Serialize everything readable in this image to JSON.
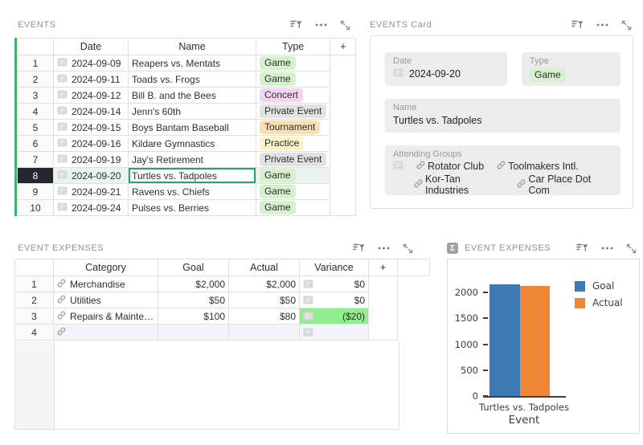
{
  "colors": {
    "accent_green": "#45b06f",
    "selected_cell_border": "#2fa163",
    "selected_row_bg": "#e9f4ec",
    "selected_rownum_bg": "#23272f",
    "variance_negative_bg": "#90ee90",
    "new_row_bg": "#f4f4fc",
    "card_field_bg": "#ececec",
    "type_colors": {
      "Game": "#d6f1cd",
      "Concert": "#f2d3f1",
      "Private Event": "#e2e2e2",
      "Tournament": "#fbdfb4",
      "Practice": "#faf3c6"
    }
  },
  "icons": {
    "filter_sort": "filter-sort-icon",
    "more": "ellipsis-icon",
    "expand_panel": "expand-icon",
    "expand_record": "expand-record-icon",
    "link": "link-icon",
    "sigma": "sigma-icon"
  },
  "events": {
    "title": "EVENTS",
    "table": {
      "headers": {
        "date": "Date",
        "name": "Name",
        "type": "Type",
        "add": "+"
      },
      "selected_column": "Name",
      "selected_row": "8",
      "rows": [
        {
          "num": "1",
          "date": "2024-09-09",
          "name": "Reapers vs. Mentats",
          "type": "Game"
        },
        {
          "num": "2",
          "date": "2024-09-11",
          "name": "Toads vs. Frogs",
          "type": "Game"
        },
        {
          "num": "3",
          "date": "2024-09-12",
          "name": "Bill B. and the Bees",
          "type": "Concert"
        },
        {
          "num": "4",
          "date": "2024-09-14",
          "name": "Jenn's 60th",
          "type": "Private Event"
        },
        {
          "num": "5",
          "date": "2024-09-15",
          "name": "Boys Bantam Baseball",
          "type": "Tournament"
        },
        {
          "num": "6",
          "date": "2024-09-16",
          "name": "Kildare Gymnastics",
          "type": "Practice"
        },
        {
          "num": "7",
          "date": "2024-09-19",
          "name": "Jay's Retirement",
          "type": "Private Event"
        },
        {
          "num": "8",
          "date": "2024-09-20",
          "name": "Turtles vs. Tadpoles",
          "type": "Game",
          "selected": true
        },
        {
          "num": "9",
          "date": "2024-09-21",
          "name": "Ravens vs. Chiefs",
          "type": "Game"
        },
        {
          "num": "10",
          "date": "2024-09-24",
          "name": "Pulses vs. Berries",
          "type": "Game"
        }
      ]
    }
  },
  "events_card": {
    "title": "EVENTS Card",
    "fields": {
      "date": {
        "label": "Date",
        "value": "2024-09-20"
      },
      "type": {
        "label": "Type",
        "value": "Game"
      },
      "name": {
        "label": "Name",
        "value": "Turtles vs. Tadpoles"
      },
      "attending_groups": {
        "label": "Attending Groups",
        "links": [
          "Rotator Club",
          "Toolmakers Intl.",
          "Kor-Tan Industries",
          "Car Place Dot Com"
        ]
      }
    }
  },
  "event_expenses": {
    "title": "EVENT EXPENSES",
    "table": {
      "headers": {
        "category": "Category",
        "goal": "Goal",
        "actual": "Actual",
        "variance": "Variance",
        "add": "+"
      },
      "selected_column": "Category",
      "rows": [
        {
          "num": "1",
          "category": "Merchandise",
          "goal": "$2,000",
          "actual": "$2,000",
          "variance": "$0"
        },
        {
          "num": "2",
          "category": "Utilities",
          "goal": "$50",
          "actual": "$50",
          "variance": "$0"
        },
        {
          "num": "3",
          "category": "Repairs & Mainte…",
          "goal": "$100",
          "actual": "$80",
          "variance": "($20)",
          "variance_highlight": true
        },
        {
          "num": "4",
          "category": "",
          "goal": "",
          "actual": "",
          "variance": "",
          "new_row": true
        }
      ]
    }
  },
  "chart_panel": {
    "title": "EVENT EXPENSES"
  },
  "chart_data": {
    "type": "bar",
    "title": "",
    "categories": [
      "Turtles vs. Tadpoles"
    ],
    "series": [
      {
        "name": "Goal",
        "values": [
          2150
        ],
        "color": "#3d79b4"
      },
      {
        "name": "Actual",
        "values": [
          2130
        ],
        "color": "#ef8636"
      }
    ],
    "xlabel": "Event",
    "ylabel": "",
    "ylim": [
      0,
      2300
    ],
    "yticks": [
      0,
      500,
      1000,
      1500,
      2000
    ],
    "legend_position": "right",
    "grid": false
  }
}
